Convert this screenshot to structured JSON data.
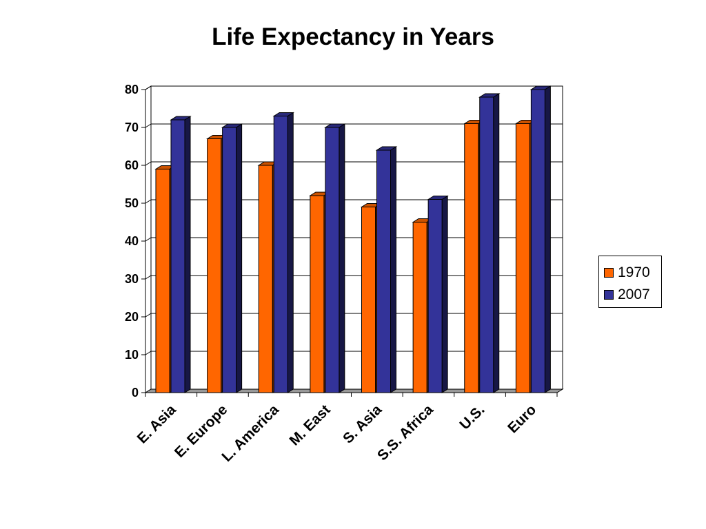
{
  "chart_data": {
    "type": "bar",
    "title": "Life Expectancy in Years",
    "categories": [
      "E. Asia",
      "E. Europe",
      "L. America",
      "M. East",
      "S. Asia",
      "S.S. Africa",
      "U.S.",
      "Euro"
    ],
    "series": [
      {
        "name": "1970",
        "values": [
          59,
          67,
          60,
          52,
          49,
          45,
          71,
          71
        ],
        "color": "#ff6600"
      },
      {
        "name": "2007",
        "values": [
          72,
          70,
          73,
          70,
          64,
          51,
          78,
          80
        ],
        "color": "#333399"
      }
    ],
    "ylim": [
      0,
      80
    ],
    "yticks": [
      "0",
      "10",
      "20",
      "30",
      "40",
      "50",
      "60",
      "70",
      "80"
    ],
    "grid": true,
    "legend_position": "right",
    "style": "3d-clustered-column"
  }
}
